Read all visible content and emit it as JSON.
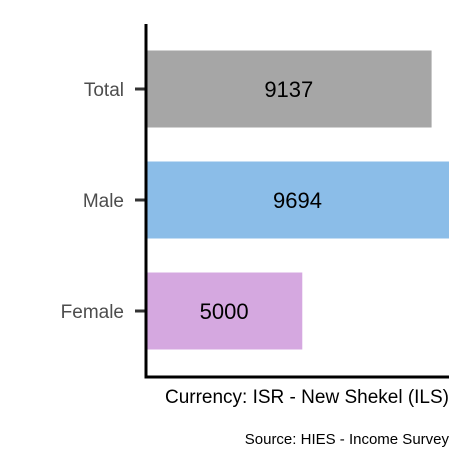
{
  "chart_data": {
    "type": "bar",
    "orientation": "horizontal",
    "categories": [
      "Total",
      "Male",
      "Female"
    ],
    "values": [
      9137,
      9694,
      5000
    ],
    "colors": [
      "#a6a6a6",
      "#8bbde8",
      "#d5a8e0"
    ],
    "xlabel": "Currency: ISR - New Shekel (ILS)",
    "ylabel": "",
    "xlim": [
      0,
      9694
    ],
    "caption": "Source:  HIES - Income Survey",
    "grid": false,
    "legend": "none"
  }
}
